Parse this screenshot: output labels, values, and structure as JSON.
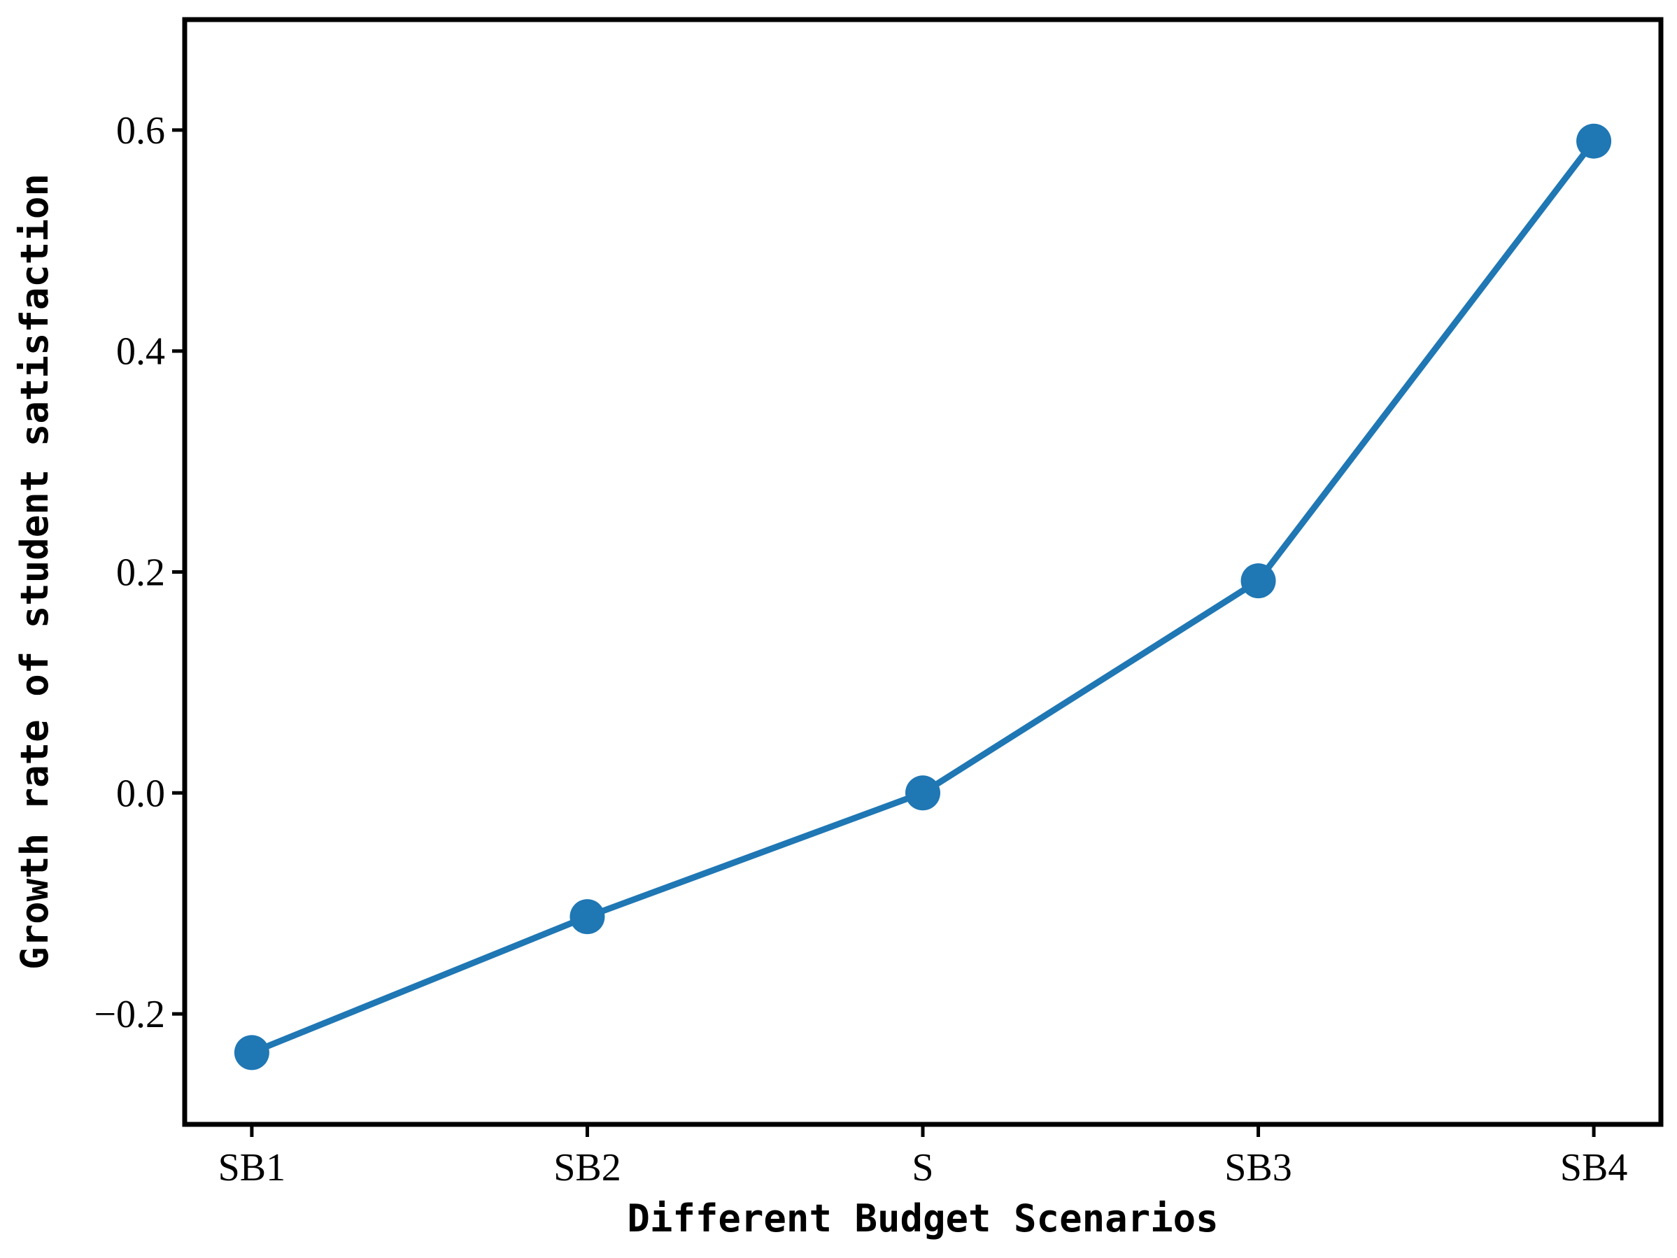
{
  "chart_data": {
    "type": "line",
    "xlabel": "Different Budget Scenarios",
    "ylabel": "Growth rate of student satisfaction",
    "categories": [
      "SB1",
      "SB2",
      "S",
      "SB3",
      "SB4"
    ],
    "series": [
      {
        "name": "Growth rate",
        "color": "#1f77b4",
        "values": [
          -0.235,
          -0.112,
          0,
          0.192,
          0.59
        ]
      }
    ],
    "ylim": [
      -0.3,
      0.7
    ],
    "yticks": [
      {
        "value": -0.2,
        "label": "−0.2"
      },
      {
        "value": 0,
        "label": "0.0"
      },
      0.2,
      0.4,
      0.6
    ],
    "grid": false,
    "legend": false
  }
}
